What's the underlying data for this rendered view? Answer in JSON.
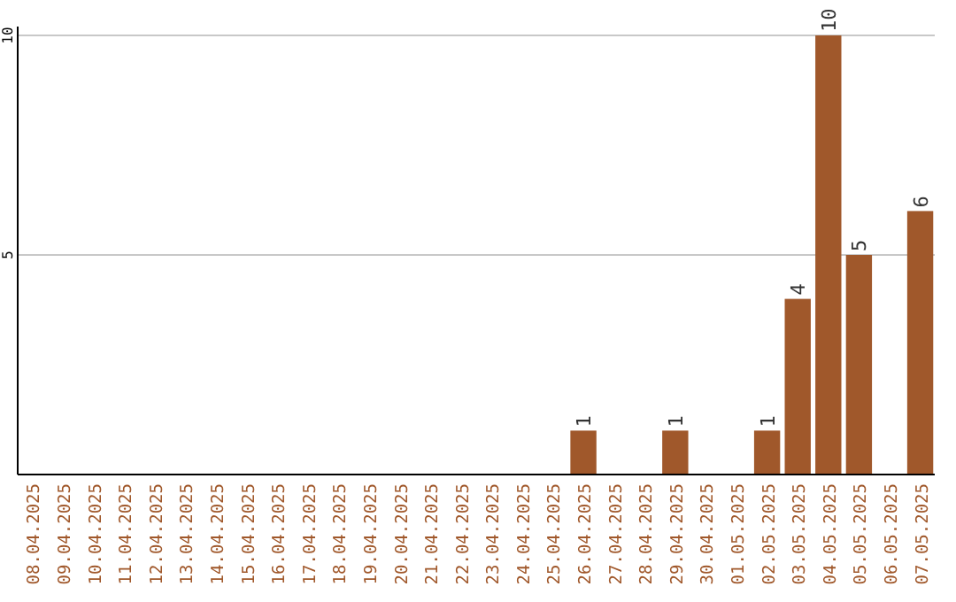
{
  "chart_data": {
    "type": "bar",
    "categories": [
      "08.04.2025",
      "09.04.2025",
      "10.04.2025",
      "11.04.2025",
      "12.04.2025",
      "13.04.2025",
      "14.04.2025",
      "15.04.2025",
      "16.04.2025",
      "17.04.2025",
      "18.04.2025",
      "19.04.2025",
      "20.04.2025",
      "21.04.2025",
      "22.04.2025",
      "23.04.2025",
      "24.04.2025",
      "25.04.2025",
      "26.04.2025",
      "27.04.2025",
      "28.04.2025",
      "29.04.2025",
      "30.04.2025",
      "01.05.2025",
      "02.05.2025",
      "03.05.2025",
      "04.05.2025",
      "05.05.2025",
      "06.05.2025",
      "07.05.2025"
    ],
    "values": [
      0,
      0,
      0,
      0,
      0,
      0,
      0,
      0,
      0,
      0,
      0,
      0,
      0,
      0,
      0,
      0,
      0,
      0,
      1,
      0,
      0,
      1,
      0,
      0,
      1,
      4,
      10,
      5,
      0,
      6
    ],
    "value_labels": [
      null,
      null,
      null,
      null,
      null,
      null,
      null,
      null,
      null,
      null,
      null,
      null,
      null,
      null,
      null,
      null,
      null,
      null,
      "1",
      null,
      null,
      "1",
      null,
      null,
      "1",
      "4",
      "10",
      "5",
      null,
      "6"
    ],
    "color": "#a0582b",
    "ylim": [
      0,
      10
    ],
    "yticks": [
      5,
      10
    ],
    "grid": "y"
  }
}
